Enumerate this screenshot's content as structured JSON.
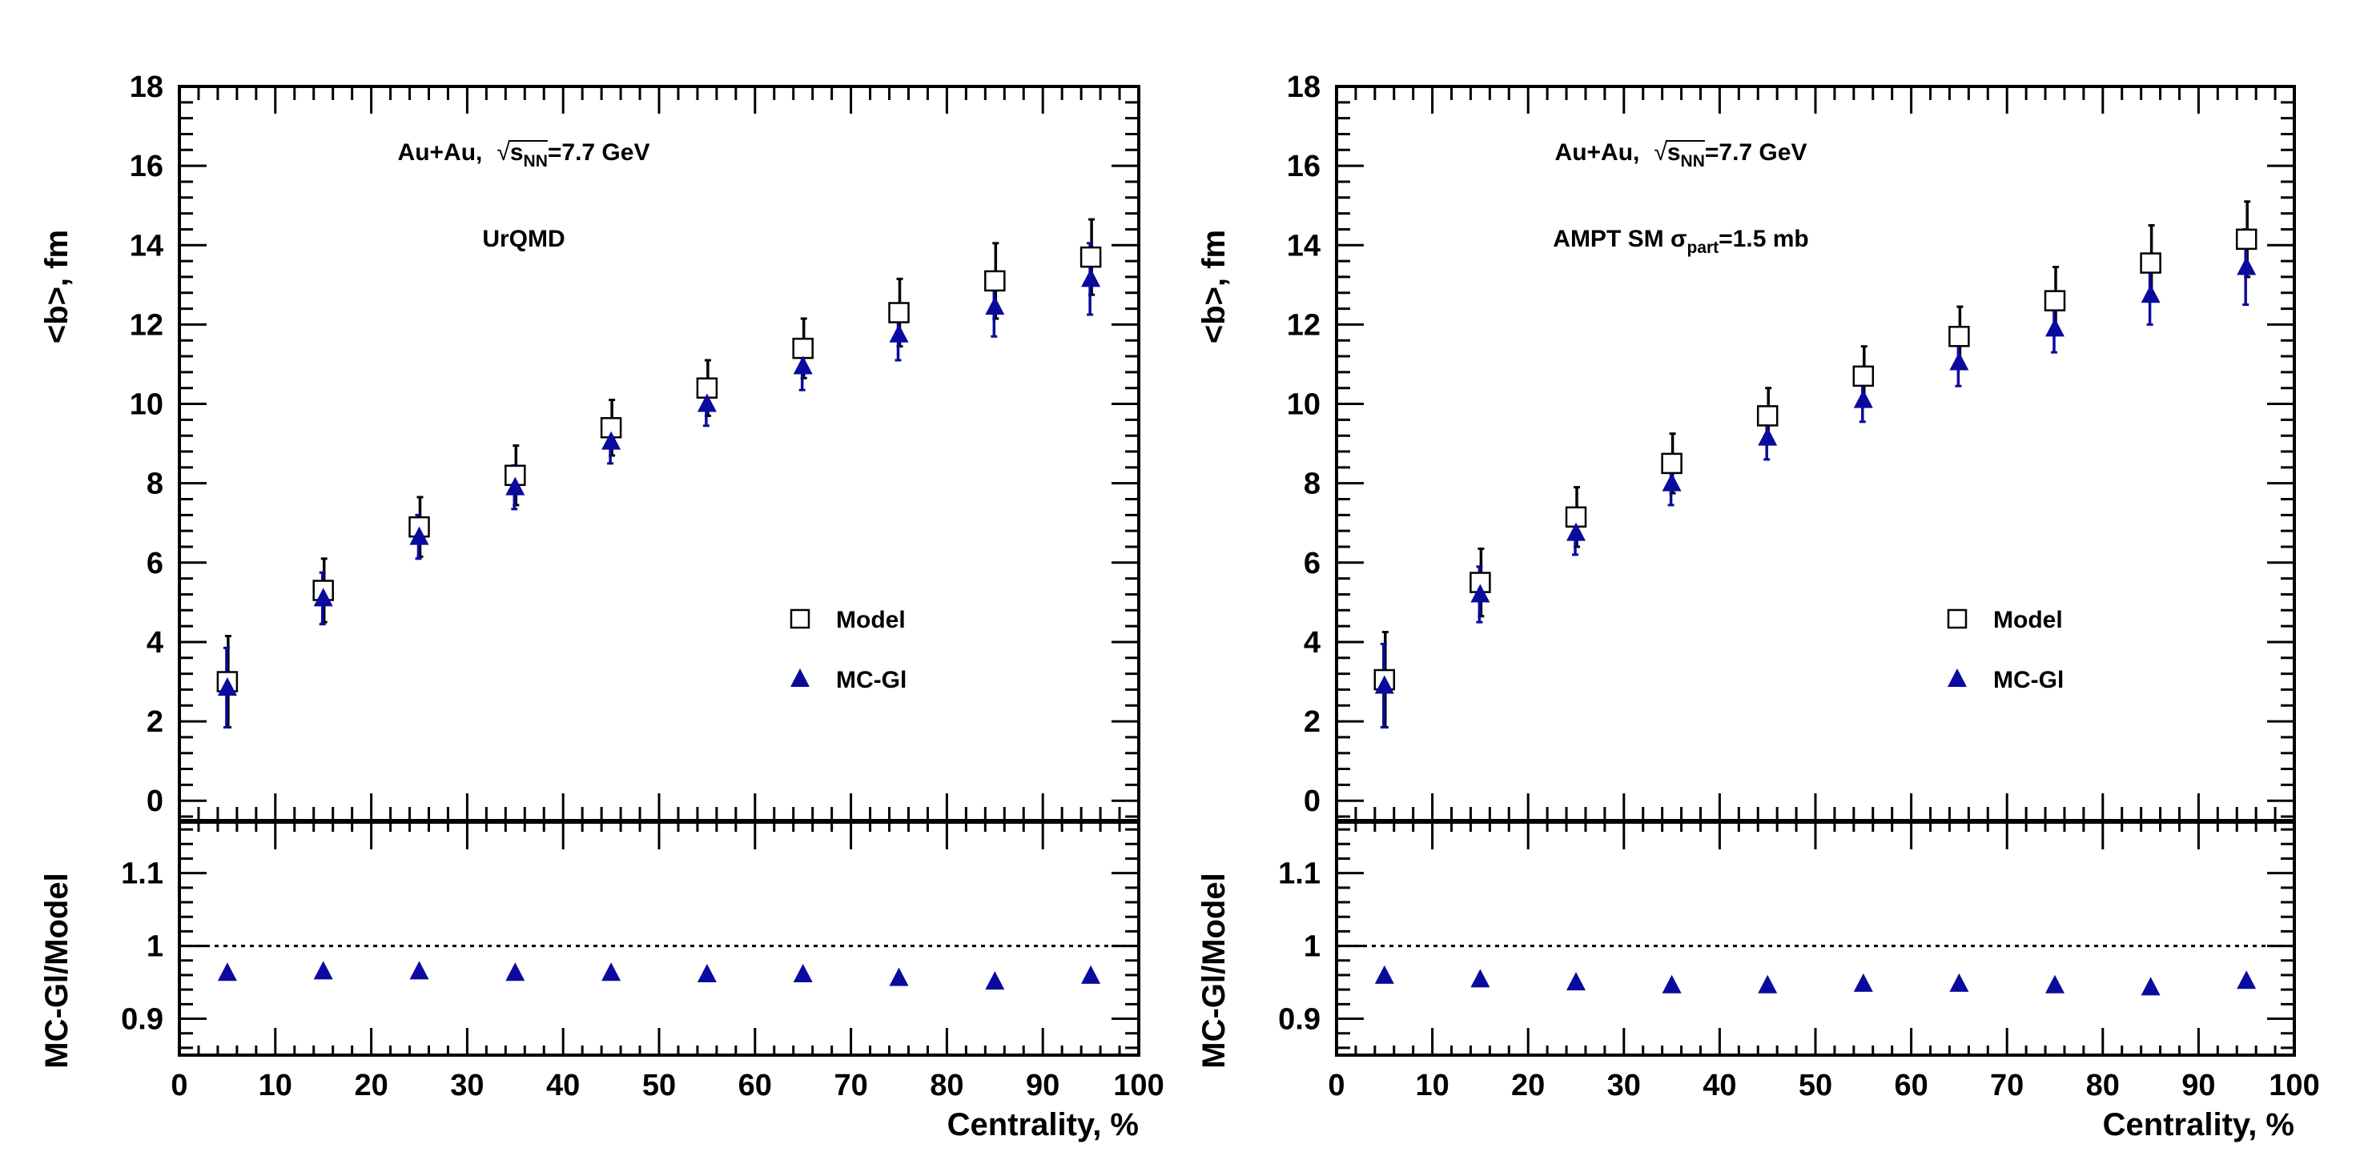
{
  "chart_data": [
    {
      "type": "scatter",
      "panel": "left",
      "annotations": {
        "system": "Au+Au,",
        "energy_prefix": "s",
        "energy_sub": "NN",
        "energy_value": "=7.7 GeV",
        "model": "UrQMD"
      },
      "x": [
        5,
        15,
        25,
        35,
        45,
        55,
        65,
        75,
        85,
        95
      ],
      "series": [
        {
          "name": "Model",
          "marker": "open-square",
          "values": [
            3.0,
            5.3,
            6.9,
            8.2,
            9.4,
            10.4,
            11.4,
            12.3,
            13.1,
            13.7
          ],
          "err": [
            1.15,
            0.8,
            0.75,
            0.75,
            0.7,
            0.7,
            0.75,
            0.85,
            0.95,
            0.95
          ]
        },
        {
          "name": "MC-Gl",
          "marker": "filled-triangle",
          "values": [
            2.85,
            5.1,
            6.65,
            7.9,
            9.05,
            10.0,
            10.95,
            11.75,
            12.45,
            13.15
          ],
          "err": [
            1.0,
            0.65,
            0.55,
            0.55,
            0.55,
            0.55,
            0.6,
            0.65,
            0.75,
            0.9
          ]
        }
      ],
      "ratio": {
        "name": "MC-Gl/Model",
        "values": [
          0.963,
          0.965,
          0.965,
          0.963,
          0.963,
          0.961,
          0.961,
          0.956,
          0.951,
          0.959
        ],
        "reference": 1,
        "ylim": [
          0.85,
          1.17
        ],
        "yticks": [
          0.9,
          1,
          1.1
        ],
        "ytick_labels": [
          "0.9",
          "1",
          "1.1"
        ],
        "ylabel": "MC-Gl/Model"
      },
      "xlabel": "Centrality, %",
      "ylabel": "<b>, fm",
      "xlim": [
        0,
        100
      ],
      "ylim": [
        -0.5,
        18
      ],
      "xticks": [
        0,
        10,
        20,
        30,
        40,
        50,
        60,
        70,
        80,
        90,
        100
      ],
      "xtick_labels": [
        "0",
        "10",
        "20",
        "30",
        "40",
        "50",
        "60",
        "70",
        "80",
        "90",
        "100"
      ],
      "yticks": [
        0,
        2,
        4,
        6,
        8,
        10,
        12,
        14,
        16,
        18
      ],
      "ytick_labels": [
        "0",
        "2",
        "4",
        "6",
        "8",
        "10",
        "12",
        "14",
        "16",
        "18"
      ],
      "legend": [
        "Model",
        "MC-Gl"
      ],
      "legend_placement": "lower-right"
    },
    {
      "type": "scatter",
      "panel": "right",
      "annotations": {
        "system": "Au+Au,",
        "energy_prefix": "s",
        "energy_sub": "NN",
        "energy_value": "=7.7 GeV",
        "model": "AMPT SM σ",
        "model_sub": "part",
        "model_value": "=1.5 mb"
      },
      "x": [
        5,
        15,
        25,
        35,
        45,
        55,
        65,
        75,
        85,
        95
      ],
      "series": [
        {
          "name": "Model",
          "marker": "open-square",
          "values": [
            3.05,
            5.5,
            7.15,
            8.5,
            9.7,
            10.7,
            11.7,
            12.6,
            13.55,
            14.15
          ],
          "err": [
            1.2,
            0.85,
            0.75,
            0.75,
            0.7,
            0.75,
            0.75,
            0.85,
            0.95,
            0.95
          ]
        },
        {
          "name": "MC-Gl",
          "marker": "filled-triangle",
          "values": [
            2.9,
            5.2,
            6.75,
            8.0,
            9.15,
            10.1,
            11.05,
            11.9,
            12.75,
            13.45
          ],
          "err": [
            1.05,
            0.7,
            0.55,
            0.55,
            0.55,
            0.55,
            0.6,
            0.6,
            0.75,
            0.95
          ]
        }
      ],
      "ratio": {
        "name": "MC-Gl/Model",
        "values": [
          0.959,
          0.954,
          0.95,
          0.946,
          0.946,
          0.948,
          0.948,
          0.946,
          0.943,
          0.952
        ],
        "reference": 1,
        "ylim": [
          0.85,
          1.17
        ],
        "yticks": [
          0.9,
          1,
          1.1
        ],
        "ytick_labels": [
          "0.9",
          "1",
          "1.1"
        ],
        "ylabel": "MC-Gl/Model"
      },
      "xlabel": "Centrality, %",
      "ylabel": "<b>, fm",
      "xlim": [
        0,
        100
      ],
      "ylim": [
        -0.5,
        18
      ],
      "xticks": [
        0,
        10,
        20,
        30,
        40,
        50,
        60,
        70,
        80,
        90,
        100
      ],
      "xtick_labels": [
        "0",
        "10",
        "20",
        "30",
        "40",
        "50",
        "60",
        "70",
        "80",
        "90",
        "100"
      ],
      "yticks": [
        0,
        2,
        4,
        6,
        8,
        10,
        12,
        14,
        16,
        18
      ],
      "ytick_labels": [
        "0",
        "2",
        "4",
        "6",
        "8",
        "10",
        "12",
        "14",
        "16",
        "18"
      ],
      "legend": [
        "Model",
        "MC-Gl"
      ],
      "legend_placement": "lower-right"
    }
  ],
  "colors": {
    "axis": "#000000",
    "model_marker": "#000000",
    "mcgl_marker": "#0a0a9e",
    "reference_line": "#000000"
  }
}
